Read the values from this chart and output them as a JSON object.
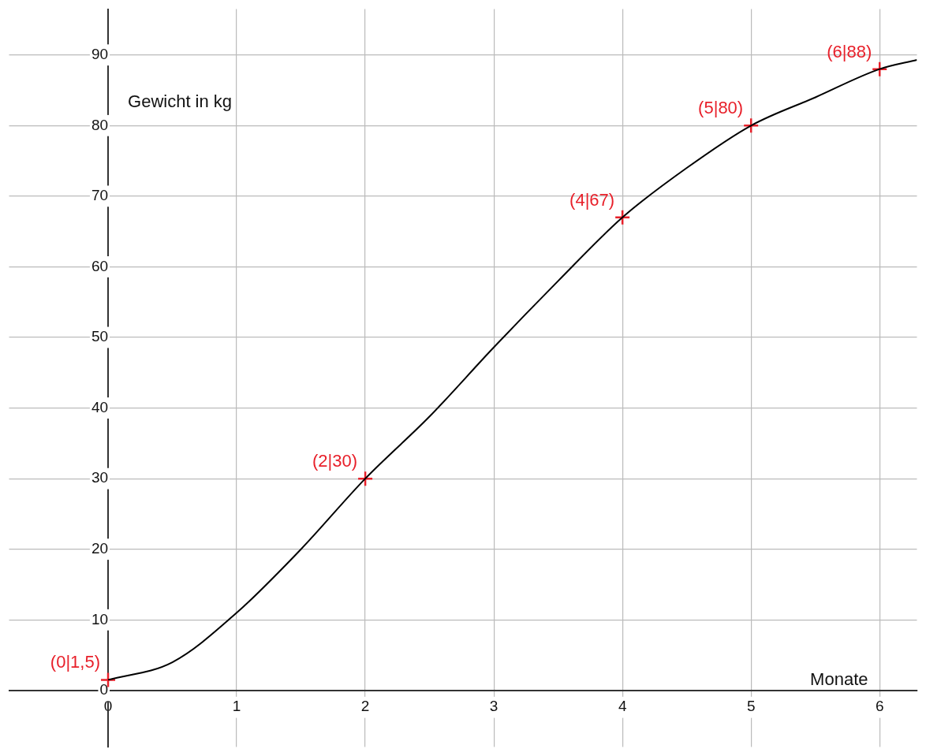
{
  "chart_data": {
    "type": "line",
    "xlabel": "Monate",
    "ylabel": "Gewicht in kg",
    "xlim": [
      -0.77,
      6.29
    ],
    "ylim": [
      -8,
      96.5
    ],
    "xticks": [
      0,
      1,
      2,
      3,
      4,
      5,
      6
    ],
    "yticks": [
      0,
      10,
      20,
      30,
      40,
      50,
      60,
      70,
      80,
      90
    ],
    "grid": true,
    "legend": false,
    "series": [
      {
        "color": "#000000",
        "line_style": "solid",
        "marker": "none",
        "x": [
          0,
          0.5,
          1,
          1.5,
          2,
          2.5,
          3,
          3.5,
          4,
          4.5,
          5,
          5.5,
          6,
          6.29
        ],
        "values": [
          1.5,
          4,
          11,
          20,
          30,
          38.8,
          48.6,
          58,
          67,
          74,
          80,
          84,
          88,
          89.3
        ]
      },
      {
        "type": "scatter",
        "color": "#e8202a",
        "marker": "cross",
        "x": [
          0,
          2,
          4,
          5,
          6
        ],
        "values": [
          1.5,
          30,
          67,
          80,
          88
        ],
        "value_labels": [
          "(0|1,5)",
          "(2|30)",
          "(4|67)",
          "(5|80)",
          "(6|88)"
        ]
      }
    ]
  }
}
